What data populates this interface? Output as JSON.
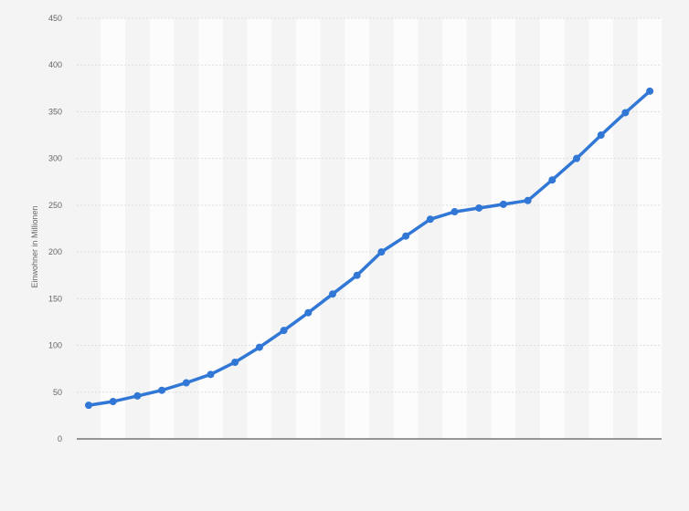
{
  "chart_data": {
    "type": "line",
    "title": "",
    "xlabel": "",
    "ylabel": "Einwohner in Millionen",
    "ylim": [
      0,
      450
    ],
    "yticks": [
      0,
      50,
      100,
      150,
      200,
      250,
      300,
      350,
      400,
      450
    ],
    "grid": true,
    "series": [
      {
        "values": [
          36,
          40,
          46,
          52,
          60,
          69,
          82,
          98,
          116,
          135,
          155,
          175,
          200,
          217,
          235,
          243,
          247,
          251,
          255,
          277,
          300,
          325,
          349,
          372
        ]
      }
    ],
    "colors": {
      "line": "#3177d6",
      "band": "#ffffff",
      "grid": "#dddddd",
      "baseline": "#333333"
    }
  }
}
